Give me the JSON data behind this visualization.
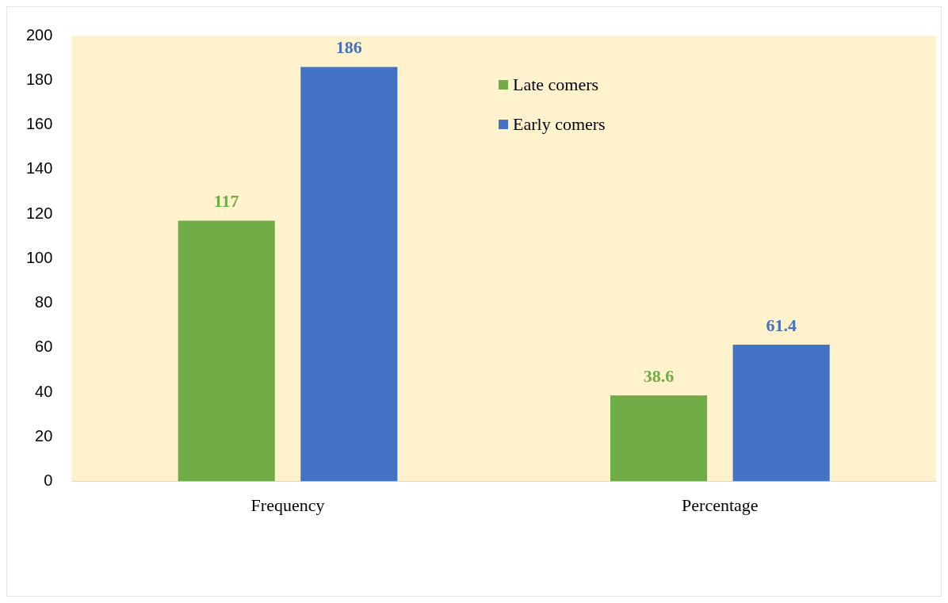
{
  "chart_data": {
    "type": "bar",
    "categories": [
      "Frequency",
      "Percentage"
    ],
    "series": [
      {
        "name": "Late comers",
        "color": "#70ad47",
        "values": [
          117,
          38.6
        ]
      },
      {
        "name": "Early comers",
        "color": "#4472c4",
        "values": [
          186,
          61.4
        ]
      }
    ],
    "ylim": [
      0,
      200
    ],
    "yticks": [
      0,
      20,
      40,
      60,
      80,
      100,
      120,
      140,
      160,
      180,
      200
    ],
    "grid": false,
    "legend": "top",
    "data_labels": true
  }
}
